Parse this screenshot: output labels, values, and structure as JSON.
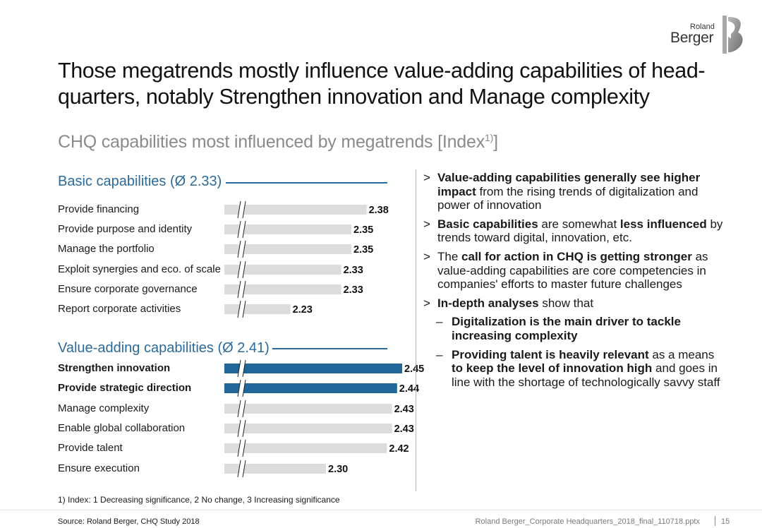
{
  "logo": {
    "small": "Roland",
    "big": "Berger"
  },
  "title": "Those megatrends mostly influence value-adding capabilities of head-quarters, notably Strengthen innovation and Manage complexity",
  "subtitle": {
    "text": "CHQ capabilities most influenced by megatrends [Index",
    "sup": "1)",
    "close": "]"
  },
  "colors": {
    "accent": "#2b6a9b",
    "bar_gray": "#dcdcdc",
    "bar_blue": "#1f6699"
  },
  "chart_data": [
    {
      "type": "bar",
      "title": "Basic capabilities (Ø 2.33)",
      "categories": [
        "Provide financing",
        "Provide purpose and identity",
        "Manage the portfolio",
        "Exploit synergies and eco. of scale",
        "Ensure corporate governance",
        "Report corporate activities"
      ],
      "values": [
        2.38,
        2.35,
        2.35,
        2.33,
        2.33,
        2.23
      ],
      "value_labels": [
        "2.38",
        "2.35",
        "2.35",
        "2.33",
        "2.33",
        "2.23"
      ],
      "highlighted": [],
      "axis_break": true,
      "xlim": [
        2.0,
        2.5
      ]
    },
    {
      "type": "bar",
      "title": "Value-adding capabilities (Ø 2.41)",
      "categories": [
        "Strengthen innovation",
        "Provide strategic direction",
        "Manage complexity",
        "Enable global collaboration",
        "Provide talent",
        "Ensure execution"
      ],
      "values": [
        2.45,
        2.44,
        2.43,
        2.43,
        2.42,
        2.3
      ],
      "value_labels": [
        "2.45",
        "2.44",
        "2.43",
        "2.43",
        "2.42",
        "2.30"
      ],
      "highlighted": [
        0,
        1
      ],
      "axis_break": true,
      "xlim": [
        2.0,
        2.5
      ]
    }
  ],
  "bullets": [
    {
      "bold": "Value-adding capabilities generally see higher impact",
      "rest": " from the rising trends of digitalization and power of innovation"
    },
    {
      "bold": "Basic capabilities",
      "mid": " are somewhat ",
      "bold2": "less influenced",
      "rest": " by trends toward digital, innovation, etc."
    },
    {
      "pre": "The ",
      "bold": "call for action in CHQ is getting stronger",
      "rest": " as value-adding capabilities are core competencies in companies' efforts to master future challenges"
    },
    {
      "bold": "In-depth analyses",
      "rest": " show that"
    }
  ],
  "sub_bullets": [
    {
      "bold": "Digitalization is the main driver to tackle increasing complexity"
    },
    {
      "bold": "Providing talent is heavily relevant",
      "mid": " as a means ",
      "bold2": "to keep the level of innovation high",
      "rest": " and goes in line with the shortage of technologically savvy staff"
    }
  ],
  "footnote": "1) Index: 1 Decreasing significance, 2 No change, 3 Increasing significance",
  "source": "Source: Roland Berger, CHQ Study 2018",
  "filename": "Roland Berger_Corporate Headquarters_2018_final_110718.pptx",
  "page": "15"
}
